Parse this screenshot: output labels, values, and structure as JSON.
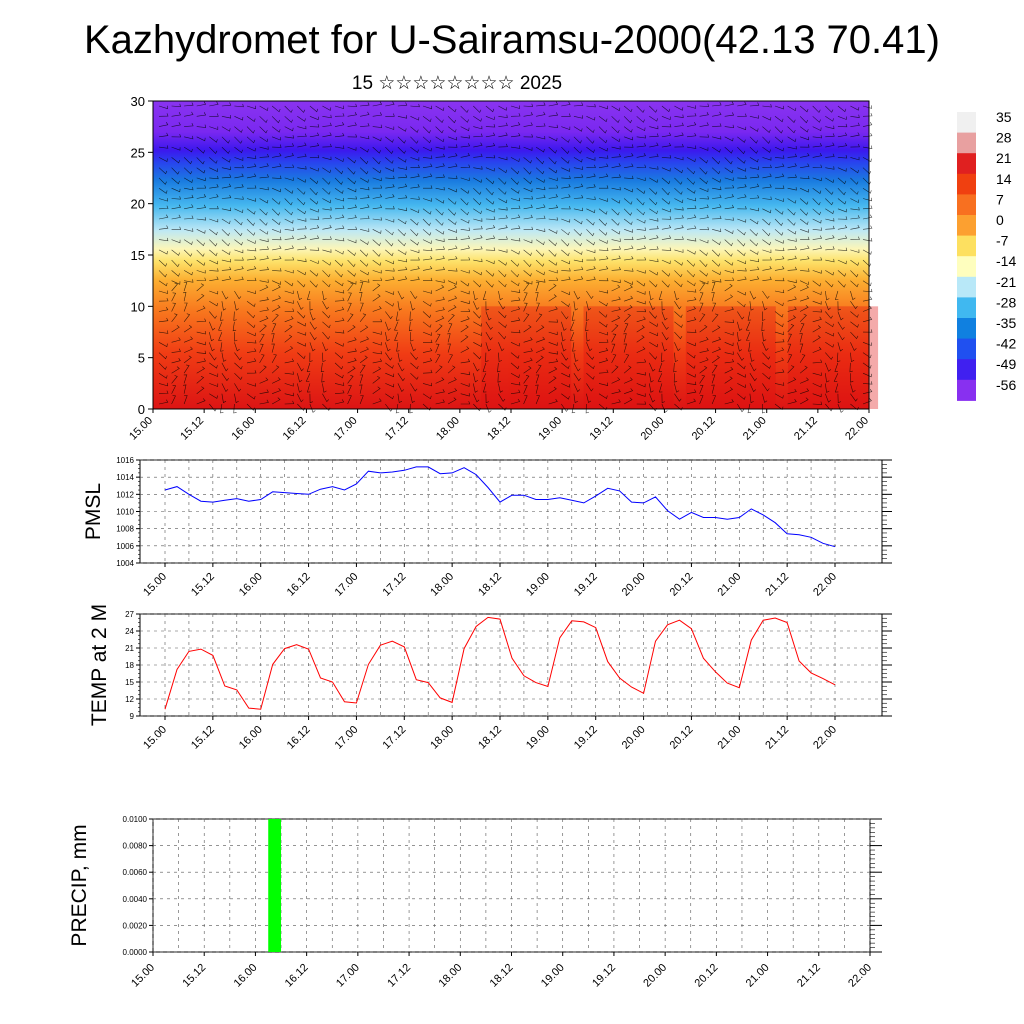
{
  "title": "Kazhydromet for U-Sairamsu-2000(42.13 70.41)",
  "subtitle": "15 ☆☆☆☆☆☆☆☆ 2025",
  "time_labels": [
    "15.00",
    "15.12",
    "16.00",
    "16.12",
    "17.00",
    "17.12",
    "18.00",
    "18.12",
    "19.00",
    "19.12",
    "20.00",
    "20.12",
    "21.00",
    "21.12",
    "22.00"
  ],
  "colors": {
    "pmsl_line": "#0000ff",
    "temp_line": "#ff0000",
    "precip_bar": "#00ff00"
  },
  "chart_data": [
    {
      "id": "cross-section",
      "type": "heatmap",
      "title": "",
      "ylim": [
        0,
        30
      ],
      "yticks": [
        0,
        5,
        10,
        15,
        20,
        25,
        30
      ],
      "colorbar_labels": [
        "35",
        "28",
        "21",
        "14",
        "7",
        "0",
        "-7",
        "-14",
        "-21",
        "-28",
        "-35",
        "-42",
        "-49",
        "-56"
      ],
      "colorbar_colors": [
        "#f0f0f0",
        "#e8a0a0",
        "#e02020",
        "#f04010",
        "#f87020",
        "#fca030",
        "#fde060",
        "#fefebe",
        "#b8e8f8",
        "#40b8f0",
        "#1080e0",
        "#2050f0",
        "#4020f0",
        "#8830f0"
      ],
      "note_values": "temperature by height (0-30) over time; wind barbs overlaid"
    },
    {
      "id": "pmsl",
      "type": "line",
      "ylabel": "PMSL",
      "ylim": [
        1004,
        1016
      ],
      "yticks": [
        1004,
        1006,
        1008,
        1010,
        1012,
        1014,
        1016
      ],
      "x": [
        0,
        3,
        6,
        9,
        12,
        15,
        18,
        21,
        24,
        27,
        30,
        33,
        36,
        39,
        42,
        45,
        48,
        51,
        54,
        57,
        60,
        63,
        66,
        69,
        72,
        75,
        78,
        81,
        84,
        87,
        90,
        93,
        96,
        99,
        102,
        105,
        108,
        111,
        114,
        117,
        120,
        123,
        126,
        129,
        132,
        135,
        138,
        141,
        144,
        147,
        150,
        153,
        156,
        159,
        162,
        165,
        168
      ],
      "series": [
        {
          "values": [
            1012.5,
            1012.9,
            1012.0,
            1011.2,
            1011.1,
            1011.3,
            1011.5,
            1011.2,
            1011.4,
            1012.3,
            1012.2,
            1012.1,
            1012.0,
            1012.6,
            1012.9,
            1012.5,
            1013.2,
            1014.7,
            1014.5,
            1014.6,
            1014.8,
            1015.2,
            1015.2,
            1014.4,
            1014.5,
            1015.1,
            1014.3,
            1012.8,
            1011.1,
            1011.9,
            1011.9,
            1011.4,
            1011.4,
            1011.6,
            1011.3,
            1011.0,
            1011.8,
            1012.7,
            1012.4,
            1011.1,
            1011.0,
            1011.7,
            1010.1,
            1009.1,
            1009.9,
            1009.3,
            1009.3,
            1009.1,
            1009.3,
            1010.3,
            1009.6,
            1008.7,
            1007.4,
            1007.3,
            1007.0,
            1006.3,
            1005.9
          ]
        }
      ]
    },
    {
      "id": "temp2m",
      "type": "line",
      "ylabel": "TEMP at 2 M",
      "ylim": [
        9,
        27
      ],
      "yticks": [
        9,
        12,
        15,
        18,
        21,
        24,
        27
      ],
      "x": [
        0,
        3,
        6,
        9,
        12,
        15,
        18,
        21,
        24,
        27,
        30,
        33,
        36,
        39,
        42,
        45,
        48,
        51,
        54,
        57,
        60,
        63,
        66,
        69,
        72,
        75,
        78,
        81,
        84,
        87,
        90,
        93,
        96,
        99,
        102,
        105,
        108,
        111,
        114,
        117,
        120,
        123,
        126,
        129,
        132,
        135,
        138,
        141,
        144,
        147,
        150,
        153,
        156,
        159,
        162,
        165,
        168
      ],
      "series": [
        {
          "values": [
            10.2,
            17.2,
            20.4,
            20.8,
            19.7,
            14.3,
            13.6,
            10.4,
            10.2,
            18.1,
            20.9,
            21.6,
            20.8,
            15.7,
            15.0,
            11.5,
            11.3,
            18.1,
            21.5,
            22.2,
            21.2,
            15.4,
            14.9,
            12.2,
            11.4,
            20.9,
            24.8,
            26.4,
            26.1,
            19.2,
            16.1,
            14.9,
            14.2,
            22.8,
            25.8,
            25.6,
            24.6,
            18.6,
            15.7,
            14.1,
            13.0,
            22.2,
            25.1,
            25.9,
            24.4,
            19.2,
            16.8,
            14.8,
            14.0,
            22.4,
            25.9,
            26.3,
            25.5,
            18.7,
            16.6,
            15.6,
            14.5
          ]
        }
      ]
    },
    {
      "id": "precip",
      "type": "bar",
      "ylabel": "PRECIP, mm",
      "ylim": [
        0,
        0.01
      ],
      "yticks": [
        "0.0000",
        "0.0020",
        "0.0040",
        "0.0060",
        "0.0080",
        "0.0100"
      ],
      "bars": [
        {
          "x_start": 27,
          "x_end": 30,
          "value": 0.01
        }
      ]
    }
  ]
}
